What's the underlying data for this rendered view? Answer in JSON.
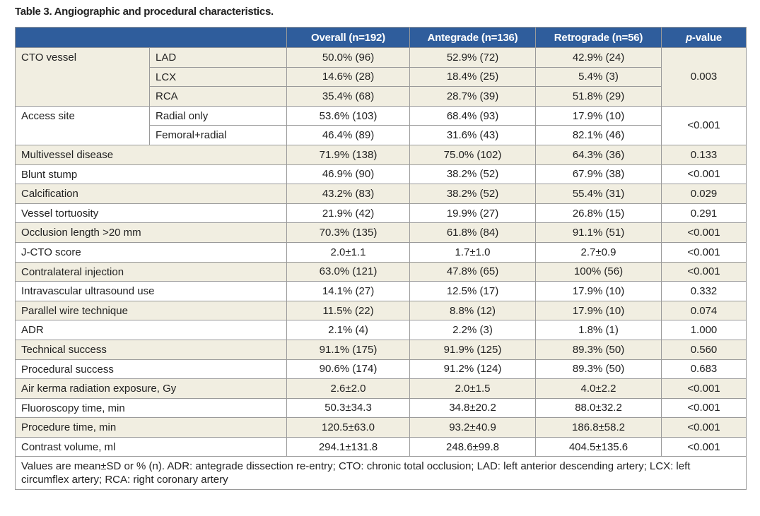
{
  "title": "Table 3. Angiographic and procedural characteristics.",
  "table": {
    "header": [
      "Overall (n=192)",
      "Antegrade (n=136)",
      "Retrograde (n=56)",
      {
        "italic": "p",
        "text": "-value"
      }
    ],
    "groups": [
      {
        "label": "CTO vessel",
        "p": "0.003",
        "rows": [
          {
            "sub": "LAD",
            "cells": [
              "50.0% (96)",
              "52.9% (72)",
              "42.9% (24)"
            ]
          },
          {
            "sub": "LCX",
            "cells": [
              "14.6% (28)",
              "18.4% (25)",
              "5.4% (3)"
            ]
          },
          {
            "sub": "RCA",
            "cells": [
              "35.4% (68)",
              "28.7% (39)",
              "51.8% (29)"
            ]
          }
        ]
      },
      {
        "label": "Access site",
        "p": "<0.001",
        "rows": [
          {
            "sub": "Radial only",
            "cells": [
              "53.6% (103)",
              "68.4% (93)",
              "17.9% (10)"
            ]
          },
          {
            "sub": "Femoral+radial",
            "cells": [
              "46.4% (89)",
              "31.6% (43)",
              "82.1% (46)"
            ]
          }
        ]
      },
      {
        "label": "Multivessel disease",
        "p": "0.133",
        "cells": [
          "71.9% (138)",
          "75.0% (102)",
          "64.3% (36)"
        ]
      },
      {
        "label": "Blunt stump",
        "p": "<0.001",
        "cells": [
          "46.9% (90)",
          "38.2% (52)",
          "67.9% (38)"
        ]
      },
      {
        "label": "Calcification",
        "p": "0.029",
        "cells": [
          "43.2% (83)",
          "38.2% (52)",
          "55.4% (31)"
        ]
      },
      {
        "label": "Vessel tortuosity",
        "p": "0.291",
        "cells": [
          "21.9% (42)",
          "19.9% (27)",
          "26.8% (15)"
        ]
      },
      {
        "label": "Occlusion length >20 mm",
        "p": "<0.001",
        "cells": [
          "70.3% (135)",
          "61.8% (84)",
          "91.1% (51)"
        ]
      },
      {
        "label": "J-CTO score",
        "p": "<0.001",
        "cells": [
          "2.0±1.1",
          "1.7±1.0",
          "2.7±0.9"
        ]
      },
      {
        "label": "Contralateral injection",
        "p": "<0.001",
        "cells": [
          "63.0% (121)",
          "47.8% (65)",
          "100% (56)"
        ]
      },
      {
        "label": "Intravascular ultrasound use",
        "p": "0.332",
        "cells": [
          "14.1% (27)",
          "12.5% (17)",
          "17.9% (10)"
        ]
      },
      {
        "label": "Parallel wire technique",
        "p": "0.074",
        "cells": [
          "11.5% (22)",
          "8.8% (12)",
          "17.9% (10)"
        ]
      },
      {
        "label": "ADR",
        "p": "1.000",
        "cells": [
          "2.1% (4)",
          "2.2% (3)",
          "1.8% (1)"
        ]
      },
      {
        "label": "Technical success",
        "p": "0.560",
        "cells": [
          "91.1% (175)",
          "91.9% (125)",
          "89.3% (50)"
        ]
      },
      {
        "label": "Procedural success",
        "p": "0.683",
        "cells": [
          "90.6% (174)",
          "91.2% (124)",
          "89.3% (50)"
        ]
      },
      {
        "label": "Air kerma radiation exposure, Gy",
        "p": "<0.001",
        "cells": [
          "2.6±2.0",
          "2.0±1.5",
          "4.0±2.2"
        ]
      },
      {
        "label": "Fluoroscopy time, min",
        "p": "<0.001",
        "cells": [
          "50.3±34.3",
          "34.8±20.2",
          "88.0±32.2"
        ]
      },
      {
        "label": "Procedure time, min",
        "p": "<0.001",
        "cells": [
          "120.5±63.0",
          "93.2±40.9",
          "186.8±58.2"
        ]
      },
      {
        "label": "Contrast volume, ml",
        "p": "<0.001",
        "cells": [
          "294.1±131.8",
          "248.6±99.8",
          "404.5±135.6"
        ]
      }
    ],
    "footnote": "Values are mean±SD or % (n). ADR: antegrade dissection re-entry; CTO: chronic total occlusion; LAD: left anterior descending artery; LCX: left circumflex artery; RCA: right coronary artery"
  }
}
